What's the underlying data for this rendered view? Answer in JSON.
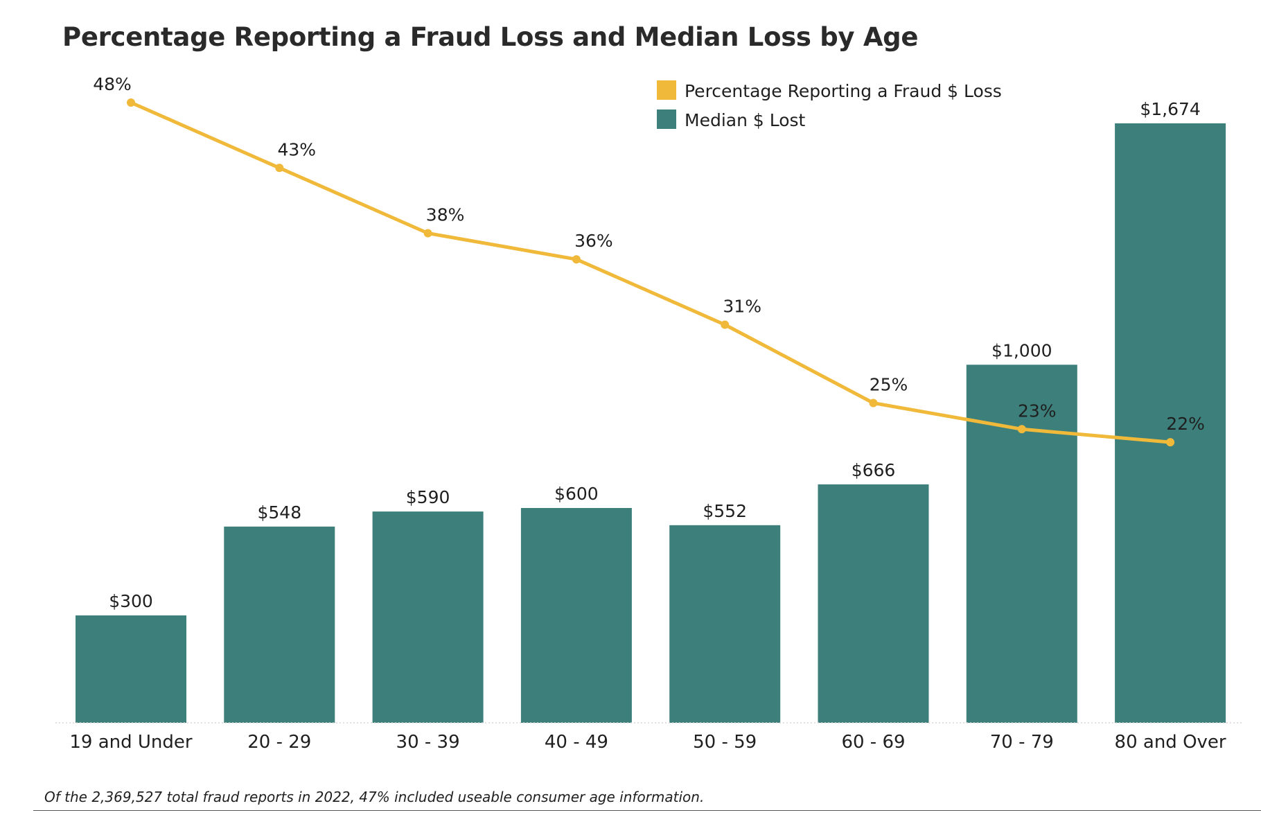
{
  "chart_data": {
    "type": "bar",
    "title": "Percentage Reporting a Fraud Loss and Median Loss by Age",
    "categories": [
      "19 and Under",
      "20 - 29",
      "30 - 39",
      "40 - 49",
      "50 - 59",
      "60 - 69",
      "70 - 79",
      "80 and Over"
    ],
    "series": [
      {
        "name": "Median $ Lost",
        "type": "bar",
        "values": [
          300,
          548,
          590,
          600,
          552,
          666,
          1000,
          1674
        ],
        "labels": [
          "$300",
          "$548",
          "$590",
          "$600",
          "$552",
          "$666",
          "$1,000",
          "$1,674"
        ],
        "color": "#3c7f7b"
      },
      {
        "name": "Percentage Reporting a Fraud $ Loss",
        "type": "line",
        "values": [
          48,
          43,
          38,
          36,
          31,
          25,
          23,
          22
        ],
        "labels": [
          "48%",
          "43%",
          "38%",
          "36%",
          "31%",
          "25%",
          "23%",
          "22%"
        ],
        "color": "#f0b93a"
      }
    ],
    "legend": "top-right",
    "grid": false,
    "footnote": "Of the 2,369,527 total fraud reports in 2022, 47% included useable consumer age information."
  }
}
